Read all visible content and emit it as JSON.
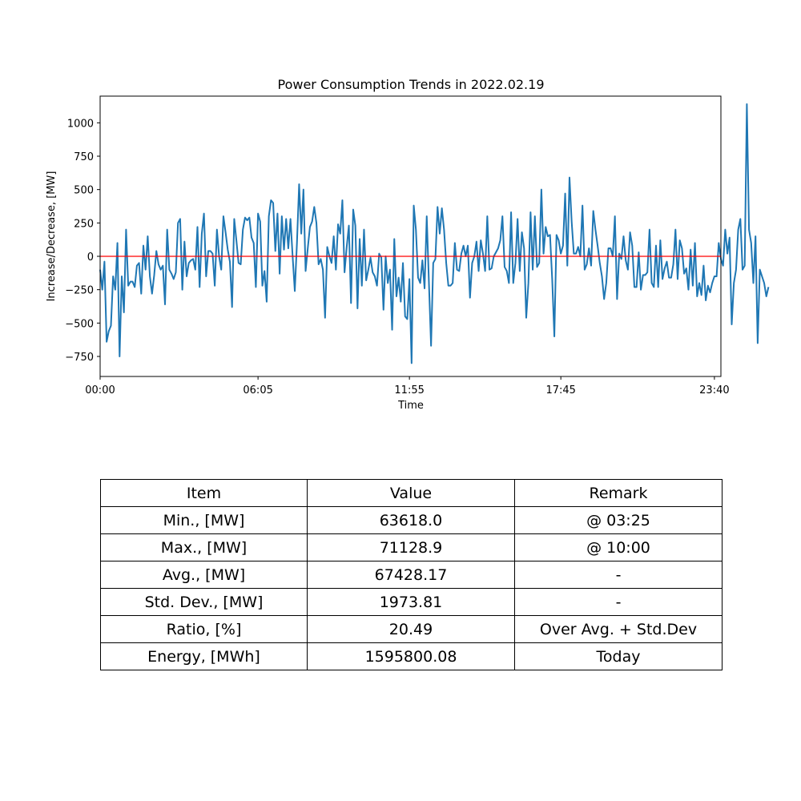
{
  "chart_data": {
    "type": "line",
    "title": "Power Consumption Trends in 2022.02.19",
    "xlabel": "Time",
    "ylabel": "Increase/Decrease, [MW]",
    "xlim": [
      0,
      287
    ],
    "ylim": [
      -900,
      1200
    ],
    "x_ticks": [
      {
        "pos": 0,
        "label": "00:00"
      },
      {
        "pos": 73,
        "label": "06:05"
      },
      {
        "pos": 143,
        "label": "11:55"
      },
      {
        "pos": 213,
        "label": "17:45"
      },
      {
        "pos": 284,
        "label": "23:40"
      }
    ],
    "y_ticks": [
      -750,
      -500,
      -250,
      0,
      250,
      500,
      750,
      1000
    ],
    "reference_line": {
      "y": 0,
      "color": "#ff0000"
    },
    "series": [
      {
        "color": "#1f77b4",
        "values": [
          -100,
          -250,
          -40,
          -640,
          -560,
          -520,
          -150,
          -250,
          100,
          -750,
          -150,
          -420,
          200,
          -220,
          -190,
          -190,
          -230,
          -70,
          -50,
          -280,
          80,
          -100,
          150,
          -150,
          -280,
          -140,
          40,
          -60,
          -100,
          -70,
          -360,
          200,
          -100,
          -130,
          -170,
          -120,
          250,
          280,
          -250,
          110,
          -150,
          -50,
          -30,
          -20,
          -100,
          220,
          -230,
          170,
          320,
          -150,
          40,
          40,
          20,
          -220,
          200,
          0,
          -100,
          300,
          180,
          50,
          -40,
          -380,
          280,
          120,
          -50,
          -60,
          200,
          290,
          270,
          290,
          140,
          100,
          -230,
          320,
          260,
          -220,
          -110,
          -340,
          300,
          420,
          400,
          40,
          320,
          -130,
          300,
          50,
          280,
          60,
          280,
          0,
          -260,
          100,
          540,
          170,
          500,
          -110,
          60,
          220,
          260,
          370,
          250,
          -60,
          -20,
          -100,
          -460,
          70,
          0,
          -50,
          150,
          -100,
          240,
          170,
          420,
          -120,
          70,
          230,
          -350,
          350,
          230,
          -390,
          130,
          -220,
          200,
          -180,
          -100,
          -10,
          -120,
          -150,
          -220,
          20,
          -10,
          -400,
          0,
          -200,
          -100,
          -550,
          130,
          -300,
          -160,
          -340,
          -50,
          -450,
          -470,
          -170,
          -800,
          380,
          200,
          -160,
          -200,
          -30,
          -240,
          300,
          -190,
          -670,
          -50,
          -20,
          370,
          170,
          360,
          200,
          -50,
          -220,
          -220,
          -200,
          100,
          -100,
          -110,
          20,
          80,
          0,
          80,
          -310,
          -50,
          0,
          110,
          -110,
          120,
          20,
          -110,
          300,
          -100,
          -90,
          0,
          30,
          60,
          120,
          300,
          -80,
          -110,
          -200,
          330,
          -200,
          -50,
          280,
          -110,
          180,
          60,
          -460,
          -200,
          330,
          -100,
          300,
          -80,
          -50,
          500,
          20,
          220,
          150,
          160,
          -170,
          -600,
          160,
          120,
          20,
          80,
          470,
          -70,
          590,
          260,
          20,
          20,
          70,
          0,
          380,
          -100,
          -60,
          60,
          -70,
          340,
          200,
          80,
          -50,
          -150,
          -320,
          -200,
          60,
          60,
          0,
          300,
          -320,
          20,
          -20,
          150,
          -30,
          -100,
          180,
          80,
          -230,
          -230,
          30,
          -250,
          -140,
          -140,
          -120,
          200,
          -200,
          -230,
          80,
          -230,
          120,
          -170,
          -90,
          -40,
          -160,
          -160,
          -60,
          200,
          -170,
          120,
          60,
          -130,
          -90,
          -250,
          50,
          -220,
          100,
          -300,
          -200,
          -290,
          -70,
          -330,
          -220,
          -270,
          -200,
          -150,
          -150,
          100,
          -20,
          -70,
          200,
          20,
          140,
          -510,
          -200,
          -100,
          200,
          280,
          -100,
          -70,
          1140,
          200,
          100,
          -200,
          150,
          -650,
          -100,
          -150,
          -200,
          -300,
          -230
        ]
      }
    ]
  },
  "table": {
    "header": [
      "Item",
      "Value",
      "Remark"
    ],
    "rows": [
      [
        "Min., [MW]",
        "63618.0",
        "@ 03:25"
      ],
      [
        "Max., [MW]",
        "71128.9",
        "@ 10:00"
      ],
      [
        "Avg., [MW]",
        "67428.17",
        "-"
      ],
      [
        "Std. Dev., [MW]",
        "1973.81",
        "-"
      ],
      [
        "Ratio, [%]",
        "20.49",
        "Over Avg. + Std.Dev"
      ],
      [
        "Energy, [MWh]",
        "1595800.08",
        "Today"
      ]
    ]
  }
}
